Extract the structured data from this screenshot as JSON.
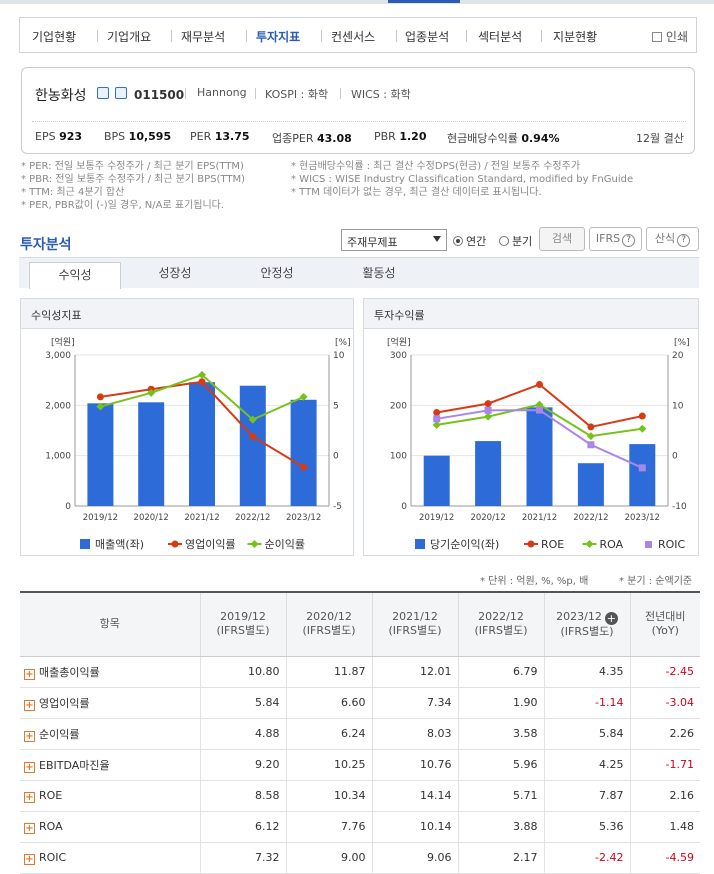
{
  "nav": {
    "items": [
      "기업현황",
      "기업개요",
      "재무분석",
      "투자지표",
      "컨센서스",
      "업종분석",
      "섹터분석",
      "지분현황"
    ],
    "print": "인쇄"
  },
  "company": {
    "name": "한농화성",
    "code": "011500",
    "eng": "Hannong",
    "market": "KOSPI : 화학",
    "wics": "WICS : 화학",
    "eps_label": "EPS",
    "eps": "923",
    "bps_label": "BPS",
    "bps": "10,595",
    "per_label": "PER",
    "per": "13.75",
    "iper_label": "업종PER",
    "iper": "43.08",
    "pbr_label": "PBR",
    "pbr": "1.20",
    "div_label": "현금배당수익률",
    "div": "0.94%",
    "settle": "12월 결산"
  },
  "notes": {
    "left": [
      "* PER: 전일 보통주 수정주가 / 최근 분기 EPS(TTM)",
      "* PBR: 전일 보통주 수정주가 / 최근 분기 BPS(TTM)",
      "* TTM: 최근 4분기 합산",
      "* PER, PBR값이 (-)일 경우, N/A로 표기됩니다."
    ],
    "right": [
      "* 현금배당수익률 : 최근 결산 수정DPS(현금) / 전일 보통주 수정주가",
      "* WICS : WISE Industry Classification Standard, modified by FnGuide",
      "* TTM 데이터가 없는 경우, 최근 결산 데이터로 표시됩니다."
    ]
  },
  "section": {
    "title": "투자분석",
    "select": "주재무제표",
    "annual": "연간",
    "quarter": "분기",
    "search": "검색",
    "ifrs": "IFRS",
    "calc": "산식"
  },
  "tabs": [
    "수익성",
    "성장성",
    "안정성",
    "활동성"
  ],
  "charts": {
    "left_title": "수익성지표",
    "right_title": "투자수익률"
  },
  "chart_data": [
    {
      "type": "bar+line",
      "categories": [
        "2019/12",
        "2020/12",
        "2021/12",
        "2022/12",
        "2023/12"
      ],
      "ylabel_left": "[억원]",
      "ylabel_right": "[%]",
      "ylim_left": [
        0,
        3000
      ],
      "ylim_right": [
        -5,
        10
      ],
      "left_ticks": [
        "3,000",
        "2,000",
        "1,000",
        "0"
      ],
      "right_ticks": [
        "10",
        "5",
        "0",
        "-5"
      ],
      "series": [
        {
          "name": "매출액(좌)",
          "kind": "bar",
          "axis": "left",
          "color": "#2d6bd9",
          "values": [
            2040,
            2060,
            2460,
            2390,
            2110
          ]
        },
        {
          "name": "영업이익률",
          "kind": "line",
          "axis": "right",
          "color": "#d83a12",
          "values": [
            5.84,
            6.6,
            7.34,
            1.9,
            -1.14
          ]
        },
        {
          "name": "순이익률",
          "kind": "line",
          "axis": "right",
          "color": "#76c21b",
          "values": [
            4.88,
            6.24,
            8.03,
            3.58,
            5.84
          ]
        }
      ]
    },
    {
      "type": "bar+line",
      "categories": [
        "2019/12",
        "2020/12",
        "2021/12",
        "2022/12",
        "2023/12"
      ],
      "ylabel_left": "[억원]",
      "ylabel_right": "[%]",
      "ylim_left": [
        0,
        300
      ],
      "ylim_right": [
        -10,
        20
      ],
      "left_ticks": [
        "300",
        "200",
        "100",
        "0"
      ],
      "right_ticks": [
        "20",
        "10",
        "0",
        "-10"
      ],
      "series": [
        {
          "name": "당기순이익(좌)",
          "kind": "bar",
          "axis": "left",
          "color": "#2d6bd9",
          "values": [
            100,
            129,
            196,
            85,
            123
          ]
        },
        {
          "name": "ROE",
          "kind": "line",
          "axis": "right",
          "color": "#d83a12",
          "values": [
            8.58,
            10.34,
            14.14,
            5.71,
            7.87
          ]
        },
        {
          "name": "ROA",
          "kind": "line",
          "axis": "right",
          "color": "#76c21b",
          "values": [
            6.12,
            7.76,
            10.14,
            3.88,
            5.36
          ]
        },
        {
          "name": "ROIC",
          "kind": "line",
          "axis": "right",
          "color": "#a987e8",
          "values": [
            7.32,
            9.0,
            9.06,
            2.17,
            -2.42
          ]
        }
      ]
    }
  ],
  "units": {
    "unit": "* 단위 : 억원, %, %p, 배",
    "quarter": "* 분기 : 순액기준"
  },
  "table": {
    "headers": [
      "항목",
      "2019/12",
      "2020/12",
      "2021/12",
      "2022/12",
      "2023/12",
      "전년대비"
    ],
    "subs": [
      "",
      "(IFRS별도)",
      "(IFRS별도)",
      "(IFRS별도)",
      "(IFRS별도)",
      "(IFRS별도)",
      "(YoY)"
    ],
    "rows": [
      [
        "매출총이익률",
        "10.80",
        "11.87",
        "12.01",
        "6.79",
        "4.35",
        "-2.45"
      ],
      [
        "영업이익률",
        "5.84",
        "6.60",
        "7.34",
        "1.90",
        "-1.14",
        "-3.04"
      ],
      [
        "순이익률",
        "4.88",
        "6.24",
        "8.03",
        "3.58",
        "5.84",
        "2.26"
      ],
      [
        "EBITDA마진율",
        "9.20",
        "10.25",
        "10.76",
        "5.96",
        "4.25",
        "-1.71"
      ],
      [
        "ROE",
        "8.58",
        "10.34",
        "14.14",
        "5.71",
        "7.87",
        "2.16"
      ],
      [
        "ROA",
        "6.12",
        "7.76",
        "10.14",
        "3.88",
        "5.36",
        "1.48"
      ],
      [
        "ROIC",
        "7.32",
        "9.00",
        "9.06",
        "2.17",
        "-2.42",
        "-4.59"
      ]
    ]
  }
}
